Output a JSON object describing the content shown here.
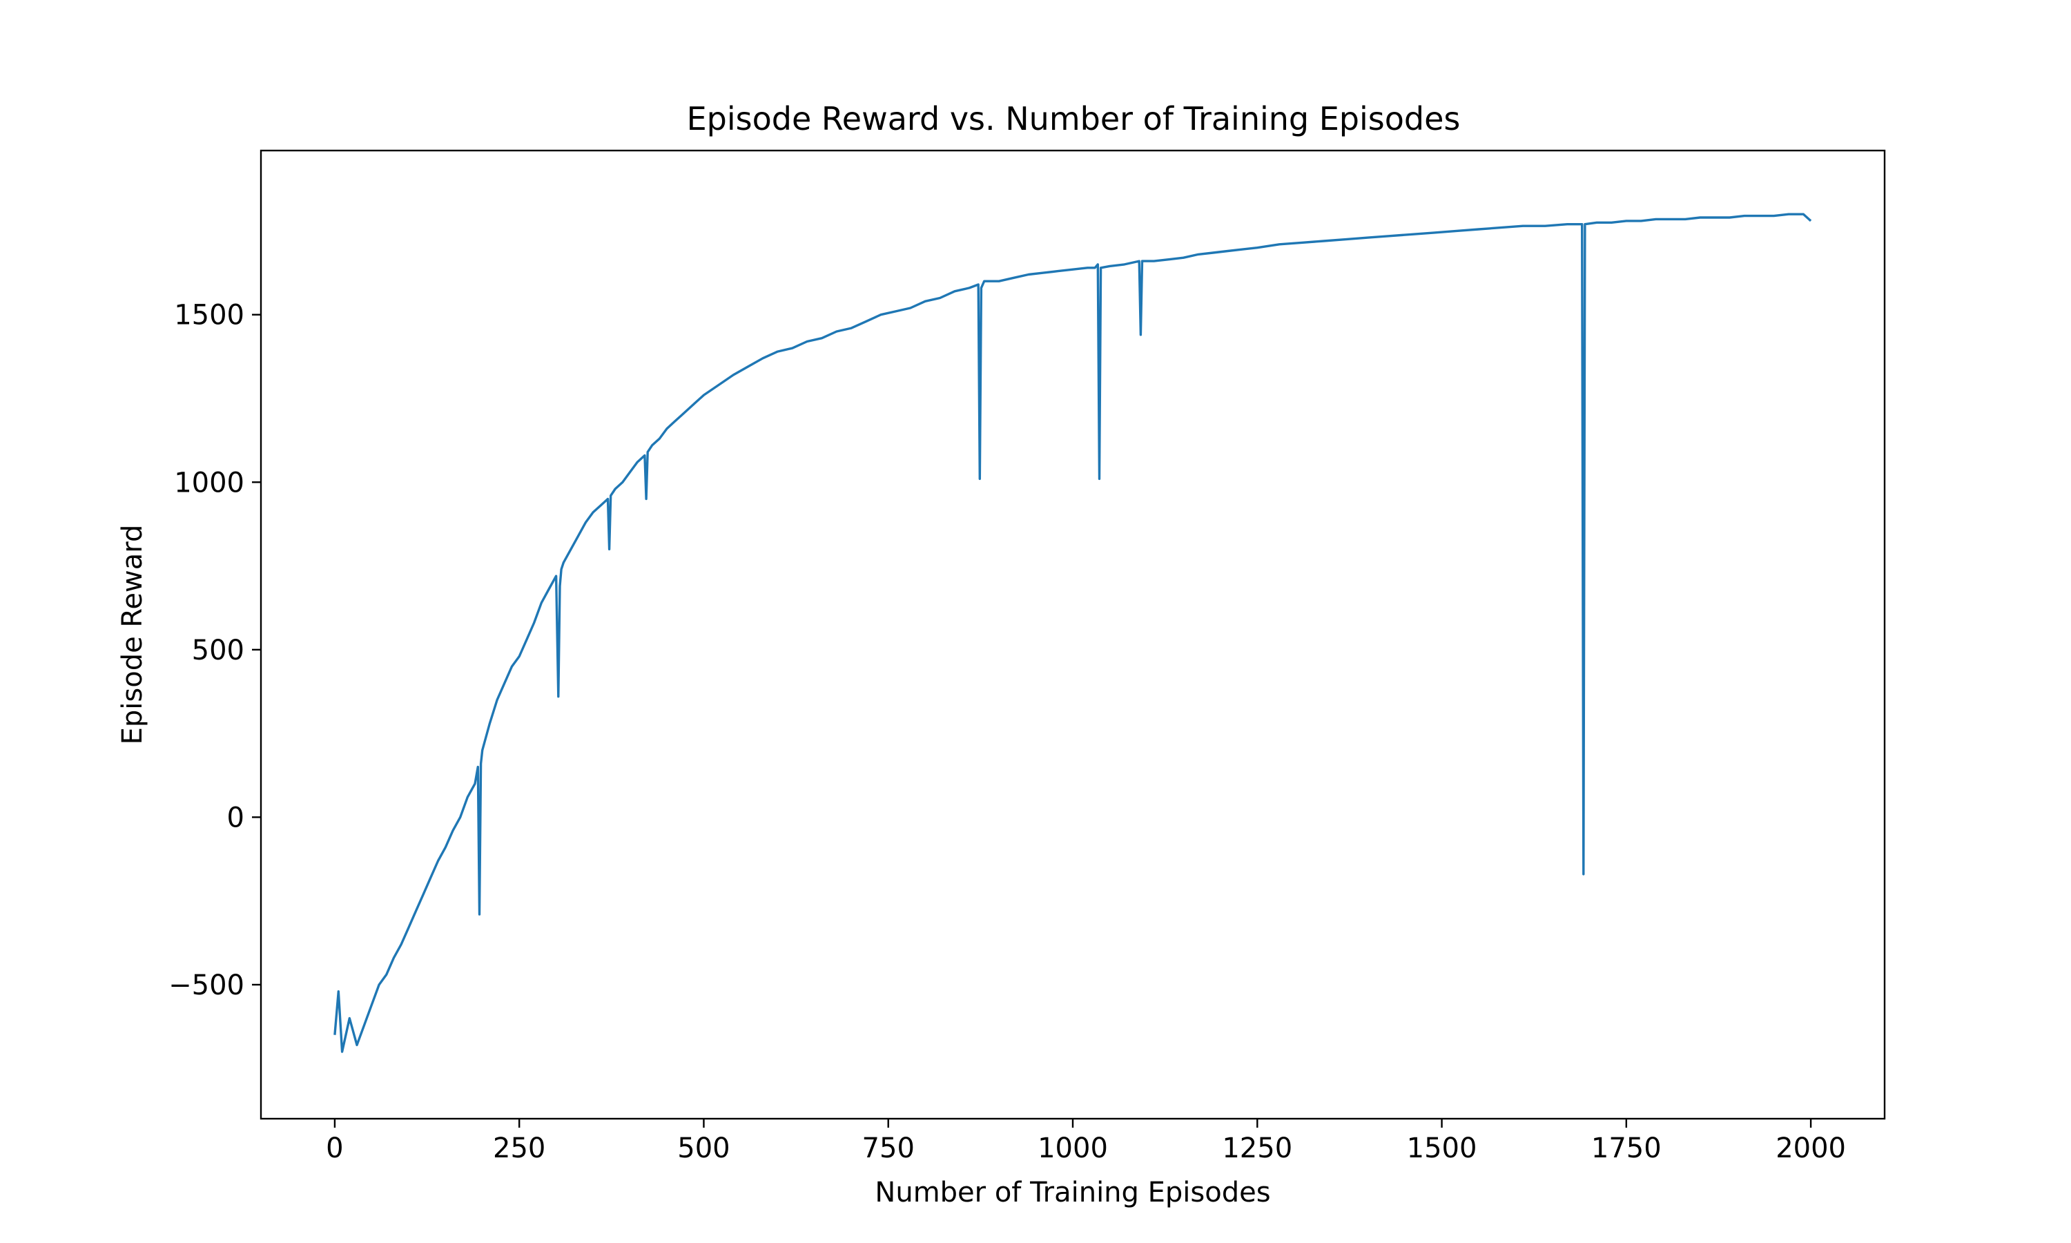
{
  "chart_data": {
    "type": "line",
    "title": "Episode Reward vs. Number of Training Episodes",
    "xlabel": "Number of Training Episodes",
    "ylabel": "Episode Reward",
    "xlim": [
      -100,
      2100
    ],
    "ylim": [
      -900,
      1990
    ],
    "x_ticks": [
      0,
      250,
      500,
      750,
      1000,
      1250,
      1500,
      1750,
      2000
    ],
    "x_tick_labels": [
      "0",
      "250",
      "500",
      "750",
      "1000",
      "1250",
      "1500",
      "1750",
      "2000"
    ],
    "y_ticks": [
      -500,
      0,
      500,
      1000,
      1500
    ],
    "y_tick_labels": [
      "−500",
      "0",
      "500",
      "1000",
      "1500"
    ],
    "grid": false,
    "line_color": "#1f77b4",
    "series": [
      {
        "x": [
          0,
          5,
          10,
          20,
          30,
          40,
          50,
          60,
          70,
          80,
          90,
          100,
          110,
          120,
          130,
          140,
          150,
          160,
          170,
          180,
          190,
          194,
          196,
          198,
          200,
          210,
          220,
          230,
          240,
          250,
          260,
          270,
          280,
          290,
          300,
          303,
          305,
          307,
          310,
          320,
          330,
          340,
          350,
          360,
          370,
          372,
          374,
          380,
          390,
          400,
          410,
          420,
          422,
          424,
          430,
          440,
          450,
          460,
          470,
          480,
          490,
          500,
          520,
          540,
          560,
          580,
          600,
          620,
          640,
          660,
          680,
          700,
          720,
          740,
          760,
          780,
          800,
          820,
          840,
          860,
          872,
          874,
          876,
          880,
          900,
          920,
          940,
          960,
          980,
          1000,
          1020,
          1030,
          1034,
          1036,
          1038,
          1050,
          1070,
          1090,
          1092,
          1094,
          1110,
          1130,
          1150,
          1170,
          1190,
          1210,
          1230,
          1250,
          1280,
          1310,
          1340,
          1370,
          1400,
          1430,
          1460,
          1490,
          1520,
          1550,
          1580,
          1610,
          1640,
          1670,
          1690,
          1692,
          1694,
          1710,
          1730,
          1750,
          1770,
          1790,
          1810,
          1830,
          1850,
          1870,
          1890,
          1910,
          1930,
          1950,
          1970,
          1990,
          2000
        ],
        "values": [
          -650,
          -520,
          -700,
          -600,
          -680,
          -620,
          -560,
          -500,
          -470,
          -420,
          -380,
          -330,
          -280,
          -230,
          -180,
          -130,
          -90,
          -40,
          0,
          60,
          100,
          150,
          -290,
          160,
          200,
          280,
          350,
          400,
          450,
          480,
          530,
          580,
          640,
          680,
          720,
          360,
          690,
          740,
          760,
          800,
          840,
          880,
          910,
          930,
          950,
          800,
          960,
          980,
          1000,
          1030,
          1060,
          1080,
          950,
          1090,
          1110,
          1130,
          1160,
          1180,
          1200,
          1220,
          1240,
          1260,
          1290,
          1320,
          1345,
          1370,
          1390,
          1400,
          1420,
          1430,
          1450,
          1460,
          1480,
          1500,
          1510,
          1520,
          1540,
          1550,
          1570,
          1580,
          1590,
          1010,
          1580,
          1600,
          1600,
          1610,
          1620,
          1625,
          1630,
          1635,
          1640,
          1640,
          1650,
          1010,
          1640,
          1645,
          1650,
          1660,
          1440,
          1660,
          1660,
          1665,
          1670,
          1680,
          1685,
          1690,
          1695,
          1700,
          1710,
          1715,
          1720,
          1725,
          1730,
          1735,
          1740,
          1745,
          1750,
          1755,
          1760,
          1765,
          1765,
          1770,
          1770,
          -170,
          1770,
          1775,
          1775,
          1780,
          1780,
          1785,
          1785,
          1785,
          1790,
          1790,
          1790,
          1795,
          1795,
          1795,
          1800,
          1800,
          1780
        ]
      }
    ]
  }
}
